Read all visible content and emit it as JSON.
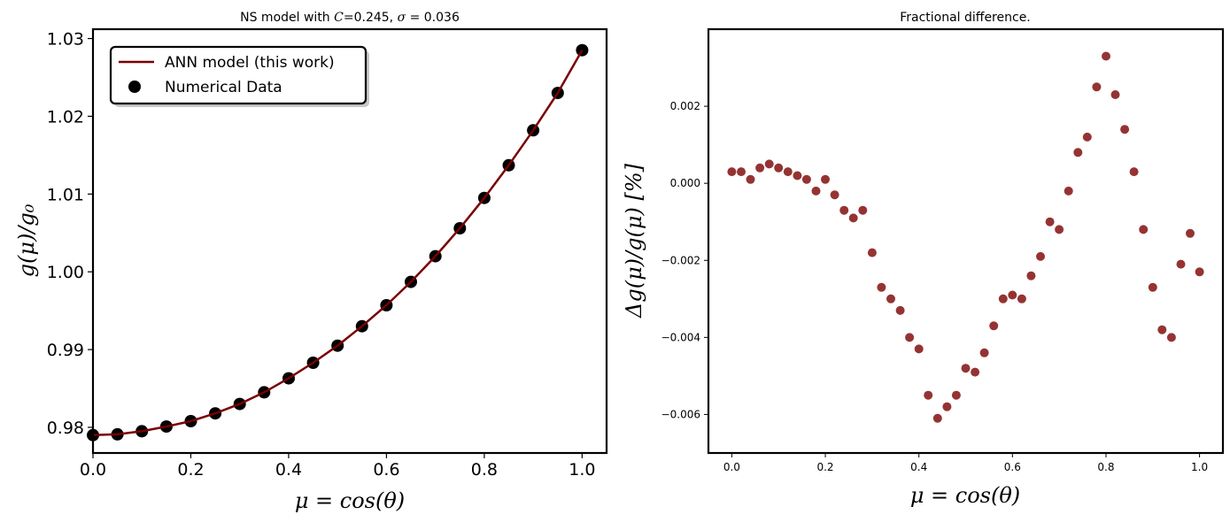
{
  "colors": {
    "model_line": "#7a0000",
    "numerical_points": "#000000",
    "diff_points": "#7a0000"
  },
  "chart_data": [
    {
      "type": "line",
      "title": "NS model with C=0.245, σ = 0.036",
      "title_parts": {
        "prefix": "NS model with ",
        "C_symbol": "C",
        "C_value": "=0.245, ",
        "sigma_symbol": "σ",
        "sigma_value": " = 0.036"
      },
      "xlabel": "μ = cos(θ)",
      "ylabel": "g(μ)/g₀",
      "xlim": [
        0.0,
        1.05
      ],
      "ylim": [
        0.9767,
        1.0312
      ],
      "xticks": [
        0.0,
        0.2,
        0.4,
        0.6,
        0.8,
        1.0
      ],
      "xtick_labels": [
        "0.0",
        "0.2",
        "0.4",
        "0.6",
        "0.8",
        "1.0"
      ],
      "yticks": [
        0.98,
        0.99,
        1.0,
        1.01,
        1.02,
        1.03
      ],
      "ytick_labels": [
        "0.98",
        "0.99",
        "1.00",
        "1.01",
        "1.02",
        "1.03"
      ],
      "grid": false,
      "legend_position": "top-left",
      "series": [
        {
          "name": "ANN model (this work)",
          "kind": "line",
          "x": [
            0.0,
            0.05,
            0.1,
            0.15,
            0.2,
            0.25,
            0.3,
            0.35,
            0.4,
            0.45,
            0.5,
            0.55,
            0.6,
            0.65,
            0.7,
            0.75,
            0.8,
            0.85,
            0.9,
            0.95,
            1.0
          ],
          "y": [
            0.979,
            0.9791,
            0.9795,
            0.9801,
            0.9808,
            0.9818,
            0.983,
            0.9845,
            0.9863,
            0.9883,
            0.9905,
            0.993,
            0.9957,
            0.9987,
            1.002,
            1.0056,
            1.0095,
            1.0137,
            1.0182,
            1.023,
            1.0285
          ]
        },
        {
          "name": "Numerical Data",
          "kind": "scatter",
          "x": [
            0.0,
            0.05,
            0.1,
            0.15,
            0.2,
            0.25,
            0.3,
            0.35,
            0.4,
            0.45,
            0.5,
            0.55,
            0.6,
            0.65,
            0.7,
            0.75,
            0.8,
            0.85,
            0.9,
            0.95,
            1.0
          ],
          "y": [
            0.979,
            0.9791,
            0.9795,
            0.9801,
            0.9808,
            0.9818,
            0.983,
            0.9845,
            0.9863,
            0.9883,
            0.9905,
            0.993,
            0.9957,
            0.9987,
            1.002,
            1.0056,
            1.0095,
            1.0137,
            1.0182,
            1.023,
            1.0285
          ]
        }
      ]
    },
    {
      "type": "scatter",
      "title": "Fractional difference.",
      "xlabel": "μ = cos(θ)",
      "ylabel": "Δg(μ)/g(μ)  [%]",
      "xlim": [
        -0.05,
        1.05
      ],
      "ylim": [
        -0.007,
        0.004
      ],
      "xticks": [
        0.0,
        0.2,
        0.4,
        0.6,
        0.8,
        1.0
      ],
      "xtick_labels": [
        "0.0",
        "0.2",
        "0.4",
        "0.6",
        "0.8",
        "1.0"
      ],
      "yticks": [
        -0.006,
        -0.004,
        -0.002,
        0.0,
        0.002
      ],
      "ytick_labels": [
        "−0.006",
        "−0.004",
        "−0.002",
        "0.000",
        "0.002"
      ],
      "grid": false,
      "series": [
        {
          "kind": "scatter",
          "x": [
            0.0,
            0.02,
            0.04,
            0.06,
            0.08,
            0.1,
            0.12,
            0.14,
            0.16,
            0.18,
            0.2,
            0.22,
            0.24,
            0.26,
            0.28,
            0.3,
            0.32,
            0.34,
            0.36,
            0.38,
            0.4,
            0.42,
            0.44,
            0.46,
            0.48,
            0.5,
            0.52,
            0.54,
            0.56,
            0.58,
            0.6,
            0.62,
            0.64,
            0.66,
            0.68,
            0.7,
            0.72,
            0.74,
            0.76,
            0.78,
            0.8,
            0.82,
            0.84,
            0.86,
            0.88,
            0.9,
            0.92,
            0.94,
            0.96,
            0.98,
            1.0
          ],
          "y": [
            0.0003,
            0.0003,
            0.0001,
            0.0004,
            0.0005,
            0.0004,
            0.0003,
            0.0002,
            0.0001,
            -0.0002,
            0.0001,
            -0.0003,
            -0.0007,
            -0.0009,
            -0.0007,
            -0.0018,
            -0.0027,
            -0.003,
            -0.0033,
            -0.004,
            -0.0043,
            -0.0055,
            -0.0061,
            -0.0058,
            -0.0055,
            -0.0048,
            -0.0049,
            -0.0044,
            -0.0037,
            -0.003,
            -0.0029,
            -0.003,
            -0.0024,
            -0.0019,
            -0.001,
            -0.0012,
            -0.0002,
            0.0008,
            0.0012,
            0.0025,
            0.0033,
            0.0023,
            0.0014,
            0.0003,
            -0.0012,
            -0.0027,
            -0.0038,
            -0.004,
            -0.0021,
            -0.0013,
            -0.0023
          ]
        }
      ]
    }
  ]
}
